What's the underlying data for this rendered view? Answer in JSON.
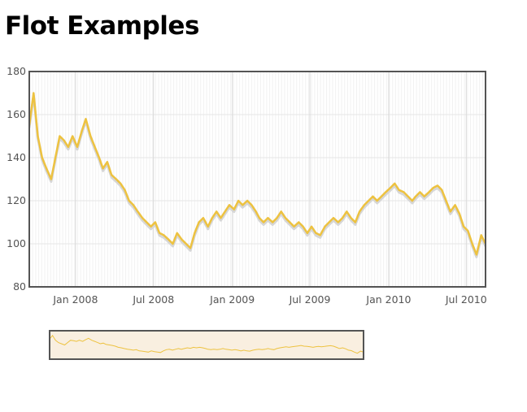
{
  "page": {
    "title": "Flot Examples"
  },
  "colors": {
    "series": "#edc240",
    "shadow": "#d6d6d6",
    "grid": "#e6e6e6",
    "frame": "#545454",
    "overview_fill": "#f9efe0"
  },
  "chart_data": {
    "type": "line",
    "title": "",
    "xlabel": "",
    "ylabel": "",
    "x_range": [
      "2007-09-15",
      "2010-08-15"
    ],
    "ylim": [
      80,
      180
    ],
    "yticks": [
      "80",
      "100",
      "120",
      "140",
      "160",
      "180"
    ],
    "xticks": [
      {
        "date": "2008-01-01",
        "label": "Jan 2008"
      },
      {
        "date": "2008-07-01",
        "label": "Jul 2008"
      },
      {
        "date": "2009-01-01",
        "label": "Jan 2009"
      },
      {
        "date": "2009-07-01",
        "label": "Jul 2009"
      },
      {
        "date": "2010-01-01",
        "label": "Jan 2010"
      },
      {
        "date": "2010-07-01",
        "label": "Jul 2010"
      }
    ],
    "grid": true,
    "weekend_bands": true,
    "series": [
      {
        "color": "#edc240",
        "points": [
          [
            "2007-09-15",
            155
          ],
          [
            "2007-09-25",
            170
          ],
          [
            "2007-10-05",
            150
          ],
          [
            "2007-10-15",
            140
          ],
          [
            "2007-10-25",
            135
          ],
          [
            "2007-11-05",
            130
          ],
          [
            "2007-11-15",
            140
          ],
          [
            "2007-11-25",
            150
          ],
          [
            "2007-12-05",
            148
          ],
          [
            "2007-12-15",
            145
          ],
          [
            "2007-12-25",
            150
          ],
          [
            "2008-01-05",
            145
          ],
          [
            "2008-01-15",
            152
          ],
          [
            "2008-01-25",
            158
          ],
          [
            "2008-02-05",
            150
          ],
          [
            "2008-02-15",
            145
          ],
          [
            "2008-02-25",
            140
          ],
          [
            "2008-03-05",
            135
          ],
          [
            "2008-03-15",
            138
          ],
          [
            "2008-03-25",
            132
          ],
          [
            "2008-04-05",
            130
          ],
          [
            "2008-04-15",
            128
          ],
          [
            "2008-04-25",
            125
          ],
          [
            "2008-05-05",
            120
          ],
          [
            "2008-05-15",
            118
          ],
          [
            "2008-05-25",
            115
          ],
          [
            "2008-06-05",
            112
          ],
          [
            "2008-06-15",
            110
          ],
          [
            "2008-06-25",
            108
          ],
          [
            "2008-07-05",
            110
          ],
          [
            "2008-07-15",
            105
          ],
          [
            "2008-07-25",
            104
          ],
          [
            "2008-08-05",
            102
          ],
          [
            "2008-08-15",
            100
          ],
          [
            "2008-08-25",
            105
          ],
          [
            "2008-09-05",
            102
          ],
          [
            "2008-09-15",
            100
          ],
          [
            "2008-09-25",
            98
          ],
          [
            "2008-10-05",
            105
          ],
          [
            "2008-10-15",
            110
          ],
          [
            "2008-10-25",
            112
          ],
          [
            "2008-11-05",
            108
          ],
          [
            "2008-11-15",
            112
          ],
          [
            "2008-11-25",
            115
          ],
          [
            "2008-12-05",
            112
          ],
          [
            "2008-12-15",
            115
          ],
          [
            "2008-12-25",
            118
          ],
          [
            "2009-01-05",
            116
          ],
          [
            "2009-01-15",
            120
          ],
          [
            "2009-01-25",
            118
          ],
          [
            "2009-02-05",
            120
          ],
          [
            "2009-02-15",
            118
          ],
          [
            "2009-02-25",
            115
          ],
          [
            "2009-03-05",
            112
          ],
          [
            "2009-03-15",
            110
          ],
          [
            "2009-03-25",
            112
          ],
          [
            "2009-04-05",
            110
          ],
          [
            "2009-04-15",
            112
          ],
          [
            "2009-04-25",
            115
          ],
          [
            "2009-05-05",
            112
          ],
          [
            "2009-05-15",
            110
          ],
          [
            "2009-05-25",
            108
          ],
          [
            "2009-06-05",
            110
          ],
          [
            "2009-06-15",
            108
          ],
          [
            "2009-06-25",
            105
          ],
          [
            "2009-07-05",
            108
          ],
          [
            "2009-07-15",
            105
          ],
          [
            "2009-07-25",
            104
          ],
          [
            "2009-08-05",
            108
          ],
          [
            "2009-08-15",
            110
          ],
          [
            "2009-08-25",
            112
          ],
          [
            "2009-09-05",
            110
          ],
          [
            "2009-09-15",
            112
          ],
          [
            "2009-09-25",
            115
          ],
          [
            "2009-10-05",
            112
          ],
          [
            "2009-10-15",
            110
          ],
          [
            "2009-10-25",
            115
          ],
          [
            "2009-11-05",
            118
          ],
          [
            "2009-11-15",
            120
          ],
          [
            "2009-11-25",
            122
          ],
          [
            "2009-12-05",
            120
          ],
          [
            "2009-12-15",
            122
          ],
          [
            "2009-12-25",
            124
          ],
          [
            "2010-01-05",
            126
          ],
          [
            "2010-01-15",
            128
          ],
          [
            "2010-01-25",
            125
          ],
          [
            "2010-02-05",
            124
          ],
          [
            "2010-02-15",
            122
          ],
          [
            "2010-02-25",
            120
          ],
          [
            "2010-03-05",
            122
          ],
          [
            "2010-03-15",
            124
          ],
          [
            "2010-03-25",
            122
          ],
          [
            "2010-04-05",
            124
          ],
          [
            "2010-04-15",
            126
          ],
          [
            "2010-04-25",
            127
          ],
          [
            "2010-05-05",
            125
          ],
          [
            "2010-05-15",
            120
          ],
          [
            "2010-05-25",
            115
          ],
          [
            "2010-06-05",
            118
          ],
          [
            "2010-06-15",
            114
          ],
          [
            "2010-06-25",
            108
          ],
          [
            "2010-07-05",
            106
          ],
          [
            "2010-07-15",
            100
          ],
          [
            "2010-07-25",
            95
          ],
          [
            "2010-08-05",
            104
          ],
          [
            "2010-08-15",
            100
          ]
        ]
      }
    ]
  }
}
